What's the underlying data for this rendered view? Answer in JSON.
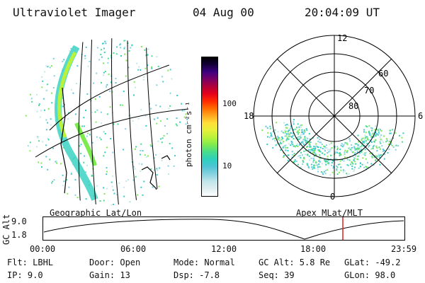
{
  "header": {
    "instrument": "Ultraviolet Imager",
    "date": "04 Aug 00",
    "time": "20:04:09 UT"
  },
  "colorbar": {
    "unit_label": "photon cm⁻²s⁻¹",
    "tick_labels": [
      "100",
      "10"
    ],
    "colors": [
      "#ffffff",
      "#dfeef0",
      "#c3e6ec",
      "#86d2e0",
      "#4fc4d4",
      "#2ecfbf",
      "#45dc8e",
      "#7deb4f",
      "#b8f23a",
      "#e6f03a",
      "#ffe03a",
      "#ffa81f",
      "#ff6a00",
      "#ff2a00",
      "#e6001a",
      "#b0003a",
      "#7a0066",
      "#3d0080",
      "#14003a",
      "#000000"
    ]
  },
  "geo_map": {
    "caption": "Geographic Lat/Lon"
  },
  "polar_plot": {
    "caption": "Apex MLat/MLT",
    "hour_labels": {
      "top": "12",
      "left": "18",
      "right": "6",
      "bottom": "0"
    },
    "lat_labels": [
      "60",
      "70",
      "80"
    ]
  },
  "altitude_strip": {
    "ylabel": "GC Alt",
    "y_ticks": [
      "9.0",
      "1.8"
    ],
    "x_ticks": [
      "00:00",
      "06:00",
      "12:00",
      "18:00",
      "23:59"
    ],
    "marker_color": "#e02020"
  },
  "footer": {
    "row1": {
      "filter": "Flt: LBHL",
      "door": "Door: Open",
      "mode": "Mode: Normal",
      "gc_alt": "GC Alt: 5.8 Re",
      "glat": "GLat: -49.2"
    },
    "row2": {
      "ip": "IP:  9.0",
      "gain": "Gain: 13",
      "dsp": "Dsp:   -7.8",
      "seq": "Seq: 39",
      "glon": "GLon: 98.0"
    }
  }
}
